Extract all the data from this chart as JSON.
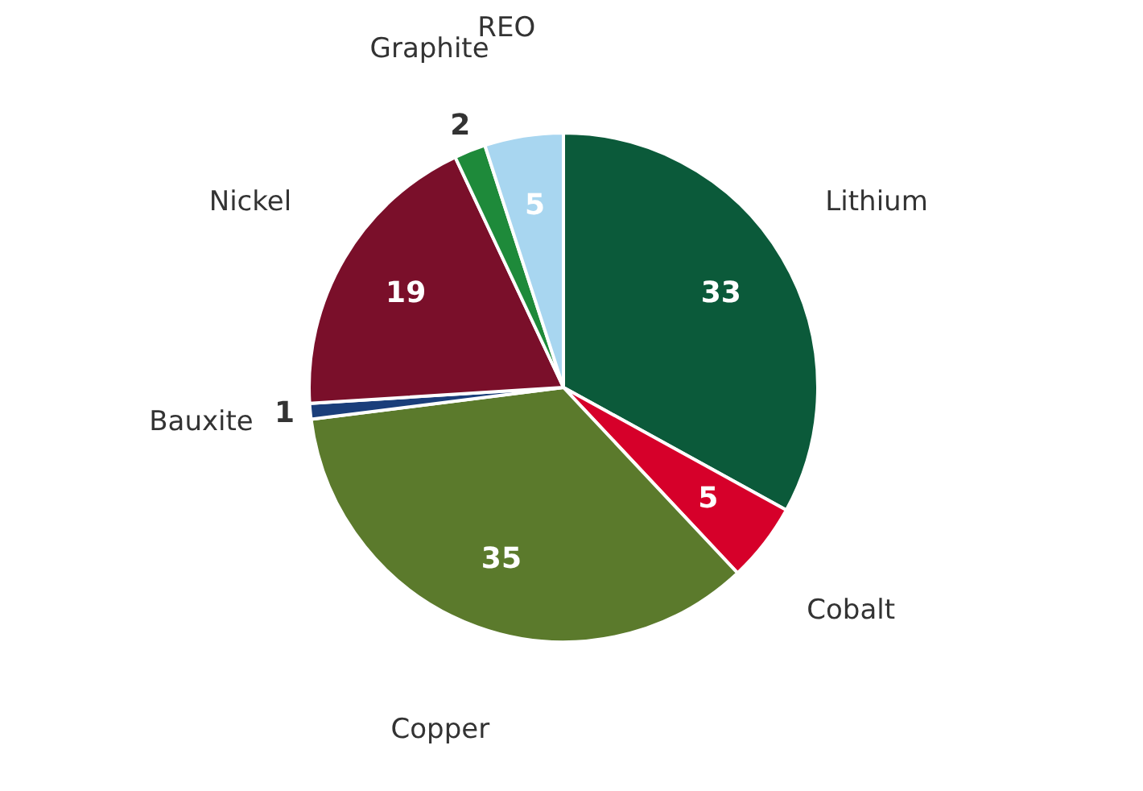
{
  "chart_data": {
    "type": "pie",
    "categories": [
      "Lithium",
      "Cobalt",
      "Copper",
      "Bauxite",
      "Nickel",
      "Graphite",
      "REO"
    ],
    "values": [
      33,
      5,
      35,
      1,
      19,
      2,
      5
    ],
    "colors": [
      "#0b5a3a",
      "#d6002a",
      "#5b7a2c",
      "#1a3e7a",
      "#7a0f2a",
      "#1e8a3a",
      "#a8d6f0"
    ],
    "data_labels": true,
    "legend": false
  }
}
